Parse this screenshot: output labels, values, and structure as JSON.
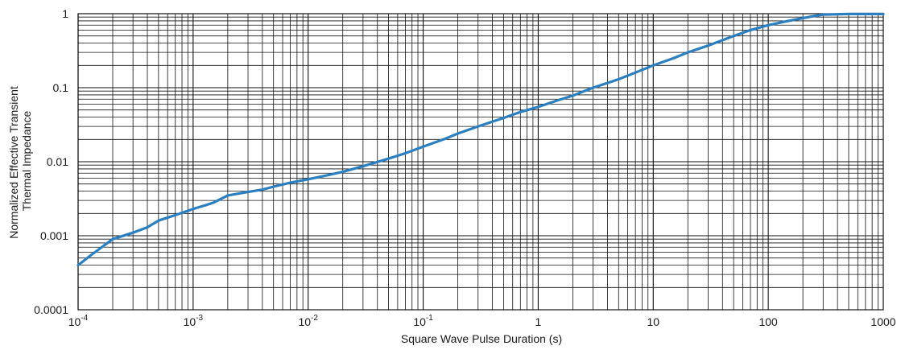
{
  "chart_data": {
    "type": "line",
    "title": "",
    "xlabel": "Square Wave Pulse Duration (s)",
    "ylabel_lines": [
      "Normalized Effective Transient",
      "Thermal Impedance"
    ],
    "xscale": "log",
    "yscale": "log",
    "xlim": [
      0.0001,
      1000
    ],
    "ylim": [
      0.0001,
      1
    ],
    "grid": true,
    "legend": "none",
    "line_color": "#2a7fc1",
    "x_ticks": [
      {
        "value": 0.0001,
        "base": "10",
        "exp": "-4"
      },
      {
        "value": 0.001,
        "base": "10",
        "exp": "-3"
      },
      {
        "value": 0.01,
        "base": "10",
        "exp": "-2"
      },
      {
        "value": 0.1,
        "base": "10",
        "exp": "-1"
      },
      {
        "value": 1,
        "base": "1",
        "exp": ""
      },
      {
        "value": 10,
        "base": "10",
        "exp": ""
      },
      {
        "value": 100,
        "base": "100",
        "exp": ""
      },
      {
        "value": 1000,
        "base": "1000",
        "exp": ""
      }
    ],
    "y_ticks": [
      {
        "value": 0.0001,
        "label": "0.0001"
      },
      {
        "value": 0.001,
        "label": "0.001"
      },
      {
        "value": 0.01,
        "label": "0.01"
      },
      {
        "value": 0.1,
        "label": "0.1"
      },
      {
        "value": 1,
        "label": "1"
      }
    ],
    "series": [
      {
        "x": [
          0.0001,
          0.00013,
          0.0002,
          0.0003,
          0.0004,
          0.0005,
          0.0007,
          0.001,
          0.0013,
          0.0015,
          0.002,
          0.003,
          0.004,
          0.005,
          0.007,
          0.01,
          0.015,
          0.02,
          0.03,
          0.05,
          0.07,
          0.1,
          0.15,
          0.2,
          0.3,
          0.5,
          0.7,
          1,
          1.5,
          2,
          3,
          5,
          7,
          10,
          15,
          20,
          30,
          50,
          70,
          100,
          150,
          200,
          250,
          300,
          500,
          700,
          1000
        ],
        "y": [
          0.0004,
          0.00055,
          0.0009,
          0.0011,
          0.0013,
          0.0016,
          0.0019,
          0.0023,
          0.0026,
          0.0028,
          0.0035,
          0.0039,
          0.0042,
          0.0046,
          0.0052,
          0.0058,
          0.0066,
          0.0073,
          0.0087,
          0.011,
          0.013,
          0.016,
          0.02,
          0.024,
          0.03,
          0.039,
          0.047,
          0.055,
          0.068,
          0.078,
          0.1,
          0.13,
          0.16,
          0.2,
          0.25,
          0.3,
          0.37,
          0.5,
          0.6,
          0.7,
          0.8,
          0.87,
          0.93,
          0.97,
          0.99,
          0.99,
          0.99
        ]
      }
    ]
  }
}
